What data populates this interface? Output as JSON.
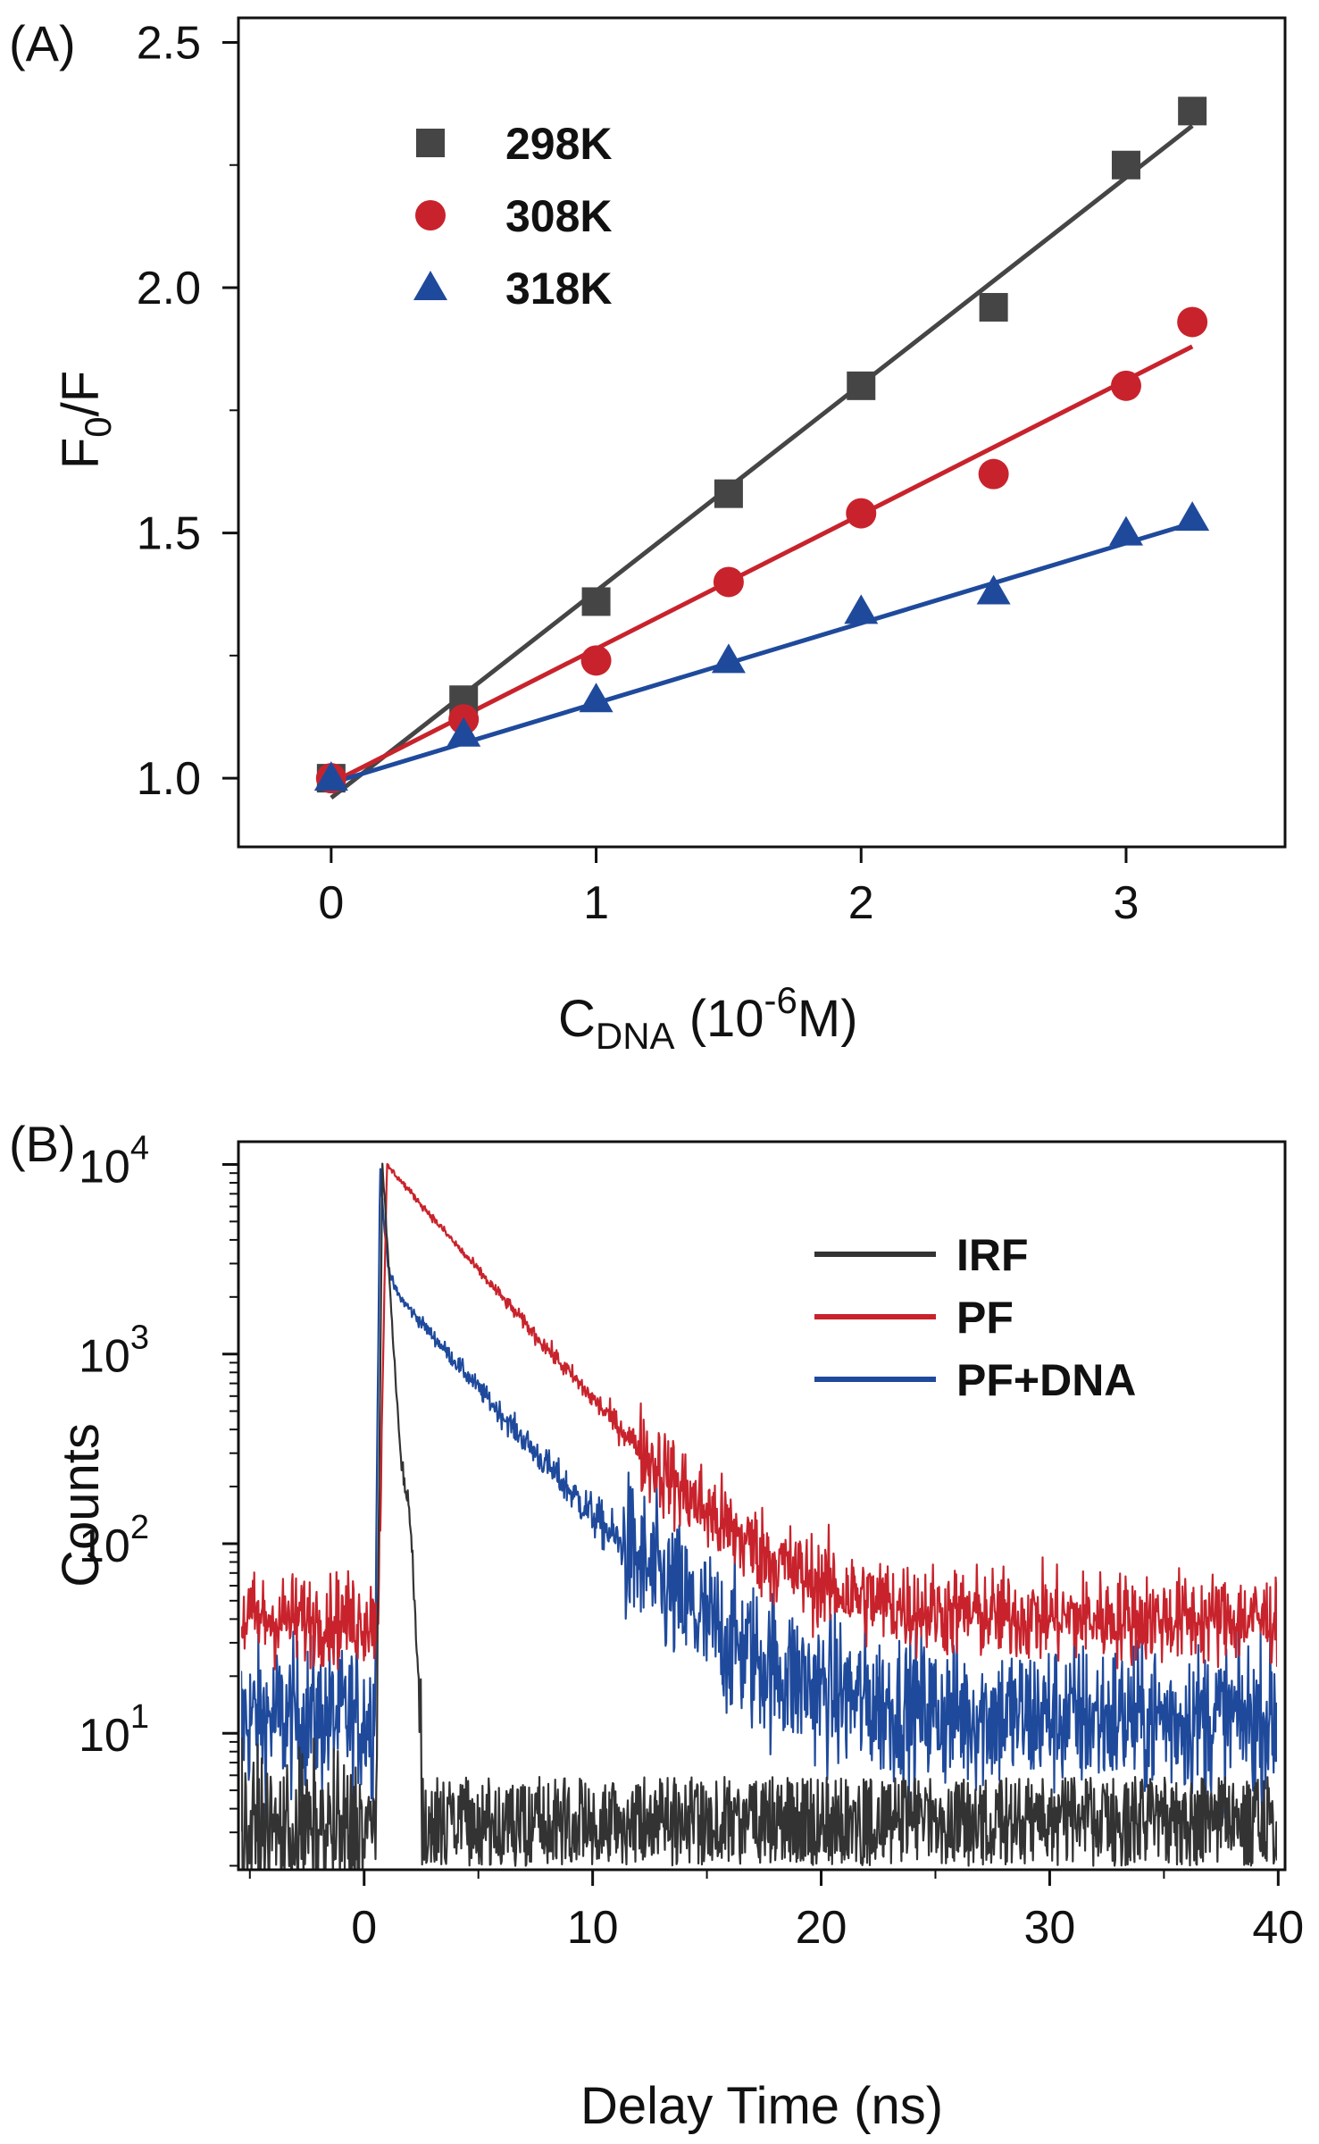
{
  "chart_data": [
    {
      "type": "scatter",
      "panel_label": "(A)",
      "title": "",
      "xlabel": {
        "main": "C",
        "sub": "DNA",
        "rest": " (10",
        "sup": "-6",
        "end": "M)"
      },
      "ylabel": {
        "main": "F",
        "sub": "0",
        "rest": "/F"
      },
      "xlim": [
        -0.35,
        3.6
      ],
      "ylim": [
        0.86,
        2.55
      ],
      "xticks": [
        0,
        1,
        2,
        3
      ],
      "xtick_labels": [
        "0",
        "1",
        "2",
        "3"
      ],
      "yticks": [
        1.0,
        1.5,
        2.0,
        2.5
      ],
      "ytick_labels": [
        "1.0",
        "1.5",
        "2.0",
        "2.5"
      ],
      "grid": false,
      "legend_position": "top-left",
      "series": [
        {
          "name": "298K",
          "marker": "square",
          "color": "#454545",
          "x": [
            0,
            0.5,
            1,
            1.5,
            2,
            2.5,
            3,
            3.25
          ],
          "y": [
            1.0,
            1.16,
            1.36,
            1.58,
            1.8,
            1.96,
            2.25,
            2.36
          ],
          "fit": {
            "x": [
              0,
              3.25
            ],
            "y": [
              0.96,
              2.33
            ]
          }
        },
        {
          "name": "308K",
          "marker": "circle",
          "color": "#c8232c",
          "x": [
            0,
            0.5,
            1,
            1.5,
            2,
            2.5,
            3,
            3.25
          ],
          "y": [
            1.0,
            1.12,
            1.24,
            1.4,
            1.54,
            1.62,
            1.8,
            1.93
          ],
          "fit": {
            "x": [
              0,
              3.25
            ],
            "y": [
              0.99,
              1.88
            ]
          }
        },
        {
          "name": "318K",
          "marker": "triangle",
          "color": "#1f4a9c",
          "x": [
            0,
            0.5,
            1,
            1.5,
            2,
            2.5,
            3,
            3.25
          ],
          "y": [
            1.0,
            1.09,
            1.16,
            1.24,
            1.34,
            1.38,
            1.5,
            1.53
          ],
          "fit": {
            "x": [
              0,
              3.25
            ],
            "y": [
              0.99,
              1.52
            ]
          }
        }
      ]
    },
    {
      "type": "line",
      "panel_label": "(B)",
      "title": "",
      "xlabel": "Delay Time (ns)",
      "ylabel": "Counts",
      "yscale": "log",
      "xlim": [
        -5.5,
        40.3
      ],
      "ylim_log10": [
        0.28,
        4.12
      ],
      "xticks": [
        0,
        10,
        20,
        30,
        40
      ],
      "xtick_labels": [
        "0",
        "10",
        "20",
        "30",
        "40"
      ],
      "yticks_log10": [
        1,
        2,
        3,
        4
      ],
      "ytick_labels": [
        {
          "base": "10",
          "exp": "1"
        },
        {
          "base": "10",
          "exp": "2"
        },
        {
          "base": "10",
          "exp": "3"
        },
        {
          "base": "10",
          "exp": "4"
        }
      ],
      "grid": false,
      "legend_position": "top-right",
      "series": [
        {
          "name": "IRF",
          "color": "#333333",
          "model": {
            "baseline": 3.0,
            "noise_log10": 0.2,
            "rise_ns": 0.5,
            "peak_ns": 0.8,
            "peak": 10000,
            "shoulder_ns": 1.9,
            "shoulder": 100,
            "fall_ns": 2.5
          }
        },
        {
          "name": "PF",
          "color": "#c8232c",
          "model": {
            "baseline": 40,
            "noise_log10": 0.12,
            "rise_ns": 0.6,
            "peak_ns": 1.0,
            "amps": [
              9900
            ],
            "taus_ns": [
              3.1
            ]
          }
        },
        {
          "name": "PF+DNA",
          "color": "#1f4a9c",
          "model": {
            "baseline": 12,
            "noise_log10": 0.2,
            "rise_ns": 0.45,
            "peak_ns": 0.7,
            "amps": [
              7400,
              2600
            ],
            "taus_ns": [
              0.15,
              3.1
            ]
          }
        }
      ]
    }
  ]
}
